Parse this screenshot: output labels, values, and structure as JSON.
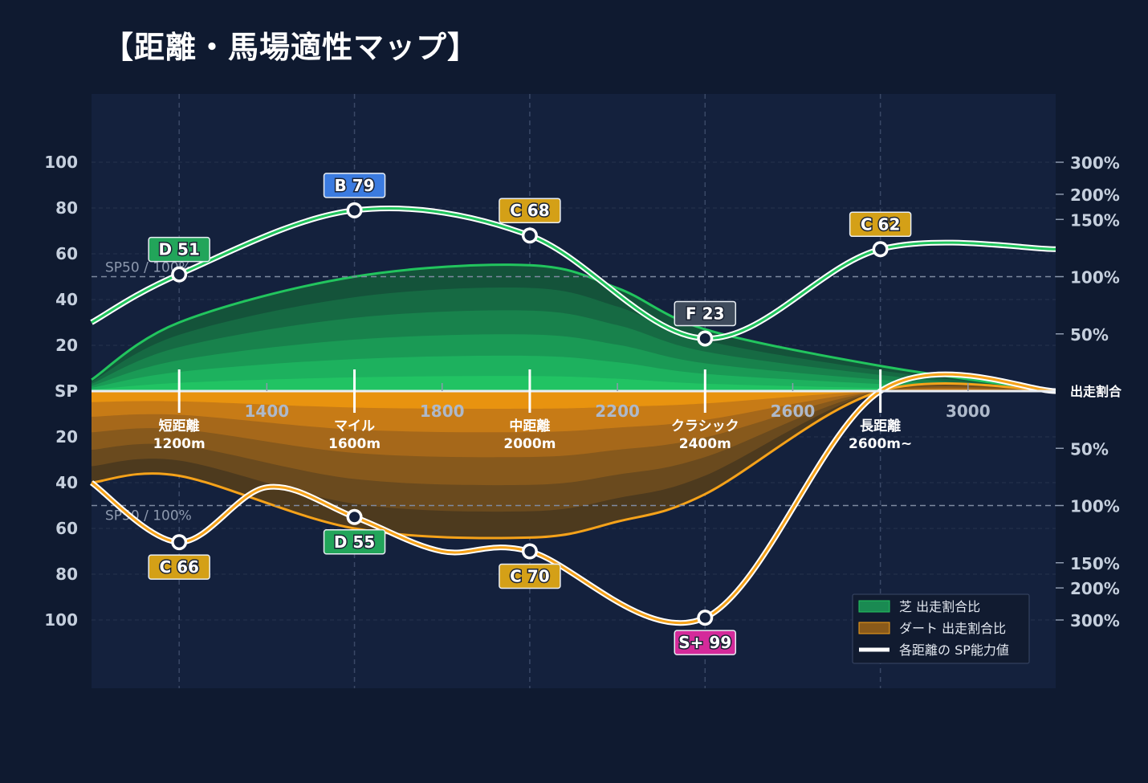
{
  "title": "【距離・馬場適性マップ】",
  "chart_data": {
    "type": "area",
    "title": "【距離・馬場適性マップ】",
    "x_ticks": [
      1400,
      1800,
      2200,
      2600,
      3000
    ],
    "x_range": [
      1000,
      3200
    ],
    "y_ticks_top": [
      100,
      80,
      60,
      40,
      20
    ],
    "y_ticks_bottom": [
      20,
      40,
      60,
      80,
      100
    ],
    "y_center_label": "SP",
    "y_range": [
      0,
      100
    ],
    "right_ticks_top": [
      [
        "300%",
        100
      ],
      [
        "200%",
        86
      ],
      [
        "150%",
        75
      ],
      [
        "100%",
        50
      ],
      [
        "50%",
        25
      ]
    ],
    "right_ticks_bottom": [
      [
        "50%",
        25
      ],
      [
        "100%",
        50
      ],
      [
        "150%",
        75
      ],
      [
        "200%",
        86
      ],
      [
        "300%",
        100
      ]
    ],
    "right_center_label": "出走割合",
    "reference_label_top": "SP50 / 100%",
    "reference_label_bottom": "SP50 / 100%",
    "reference_value": 50,
    "categories": [
      {
        "x": 1200,
        "name": "短距離",
        "dist": "1200m"
      },
      {
        "x": 1600,
        "name": "マイル",
        "dist": "1600m"
      },
      {
        "x": 2000,
        "name": "中距離",
        "dist": "2000m"
      },
      {
        "x": 2400,
        "name": "クラシック",
        "dist": "2400m"
      },
      {
        "x": 2800,
        "name": "長距離",
        "dist": "2600m~"
      }
    ],
    "turf_sp": {
      "x": [
        1000,
        1200,
        1600,
        2000,
        2400,
        2800,
        3200
      ],
      "y": [
        30,
        51,
        79,
        68,
        23,
        62,
        62
      ],
      "badges": [
        {
          "x": 1200,
          "grade": "D",
          "value": 51,
          "label": "D 51"
        },
        {
          "x": 1600,
          "grade": "B",
          "value": 79,
          "label": "B 79"
        },
        {
          "x": 2000,
          "grade": "C",
          "value": 68,
          "label": "C 68"
        },
        {
          "x": 2400,
          "grade": "F",
          "value": 23,
          "label": "F 23"
        },
        {
          "x": 2800,
          "grade": "C",
          "value": 62,
          "label": "C 62"
        }
      ]
    },
    "dirt_sp": {
      "x": [
        1000,
        1200,
        1400,
        1600,
        1800,
        2000,
        2400,
        2800,
        3200
      ],
      "y": [
        40,
        66,
        42,
        55,
        70,
        70,
        99,
        0,
        0
      ],
      "badges": [
        {
          "x": 1200,
          "grade": "C",
          "value": 66,
          "label": "C 66"
        },
        {
          "x": 1600,
          "grade": "D",
          "value": 55,
          "label": "D 55"
        },
        {
          "x": 2000,
          "grade": "C",
          "value": 70,
          "label": "C 70"
        },
        {
          "x": 2400,
          "grade": "S+",
          "value": 99,
          "label": "S+ 99"
        }
      ]
    },
    "turf_ratio": {
      "x": [
        1000,
        1200,
        1600,
        2000,
        2200,
        2400,
        2800,
        3200
      ],
      "y": [
        5,
        30,
        50,
        55,
        45,
        27,
        11,
        0
      ]
    },
    "dirt_ratio": {
      "x": [
        1000,
        1200,
        1600,
        2000,
        2200,
        2400,
        2800,
        3200
      ],
      "y": [
        40,
        37,
        60,
        64,
        57,
        45,
        0,
        0
      ]
    },
    "legend": [
      {
        "name": "芝 出走割合比",
        "color": "#1a8a52"
      },
      {
        "name": "ダート 出走割合比",
        "color": "#8a5a1a"
      },
      {
        "name": "各距離の SP能力値",
        "color": "#ffffff"
      }
    ],
    "legend_position": "bottom-right",
    "grid": true,
    "colors": {
      "turf": "#22c55e",
      "dirt": "#f5a21a",
      "grade_B": "#3b7be0",
      "grade_C": "#d4a017",
      "grade_D": "#22a55a",
      "grade_F": "#3f4b5c",
      "grade_S+": "#d42a9a"
    }
  }
}
